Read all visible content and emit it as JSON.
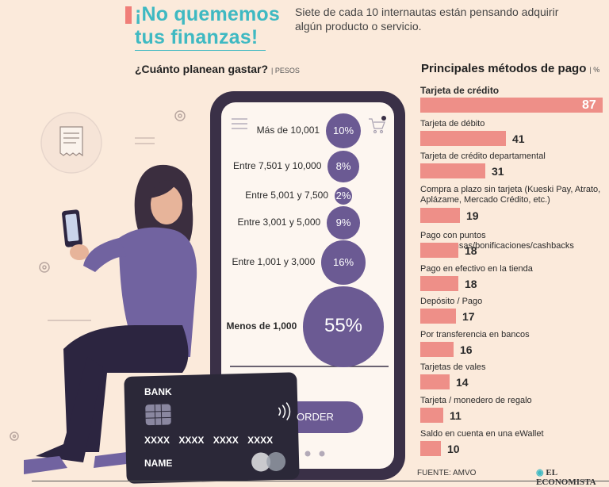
{
  "header": {
    "headline_line1": "¡No quememos",
    "headline_line2": "tus finanzas!",
    "intro": "Siete de cada 10 internautas están pensando adquirir algún producto o servicio."
  },
  "colors": {
    "accent_teal": "#3fb9c2",
    "accent_coral": "#ee8f88",
    "bubble_purple": "#6b5a93",
    "background": "#fbeadb"
  },
  "chart_data": [
    {
      "type": "bubble",
      "title": "¿Cuánto planean gastar?",
      "unit": "PESOS",
      "categories": [
        "Más de 10,001",
        "Entre 7,501 y 10,000",
        "Entre 5,001 y 7,500",
        "Entre 3,001 y 5,000",
        "Entre 1,001 y 3,000",
        "Menos de 1,000"
      ],
      "values": [
        10,
        8,
        2,
        9,
        16,
        55
      ],
      "value_labels": [
        "10%",
        "8%",
        "2%",
        "9%",
        "16%",
        "55%"
      ]
    },
    {
      "type": "bar",
      "orientation": "horizontal",
      "title": "Principales métodos de pago",
      "unit": "%",
      "categories": [
        "Tarjeta de crédito",
        "Tarjeta de débito",
        "Tarjeta de crédito departamental",
        "Compra a plazo sin tarjeta (Kueski Pay, Atrato, Aplázame, Mercado Crédito, etc.)",
        "Pago con puntos recompensas/bonificaciones/cashbacks",
        "Pago en efectivo en la tienda",
        "Depósito / Pago",
        "Por transferencia en bancos",
        "Tarjetas de vales",
        "Tarjeta / monedero de regalo",
        "Saldo en cuenta en una eWallet"
      ],
      "values": [
        87,
        41,
        31,
        19,
        18,
        18,
        17,
        16,
        14,
        11,
        10
      ]
    }
  ],
  "card": {
    "bank": "BANK",
    "number": [
      "XXXX",
      "XXXX",
      "XXXX",
      "XXXX"
    ],
    "name": "NAME",
    "button_text": "ORDER"
  },
  "footer": {
    "source": "FUENTE: AMVO",
    "logo": "EL ECONOMISTA"
  }
}
